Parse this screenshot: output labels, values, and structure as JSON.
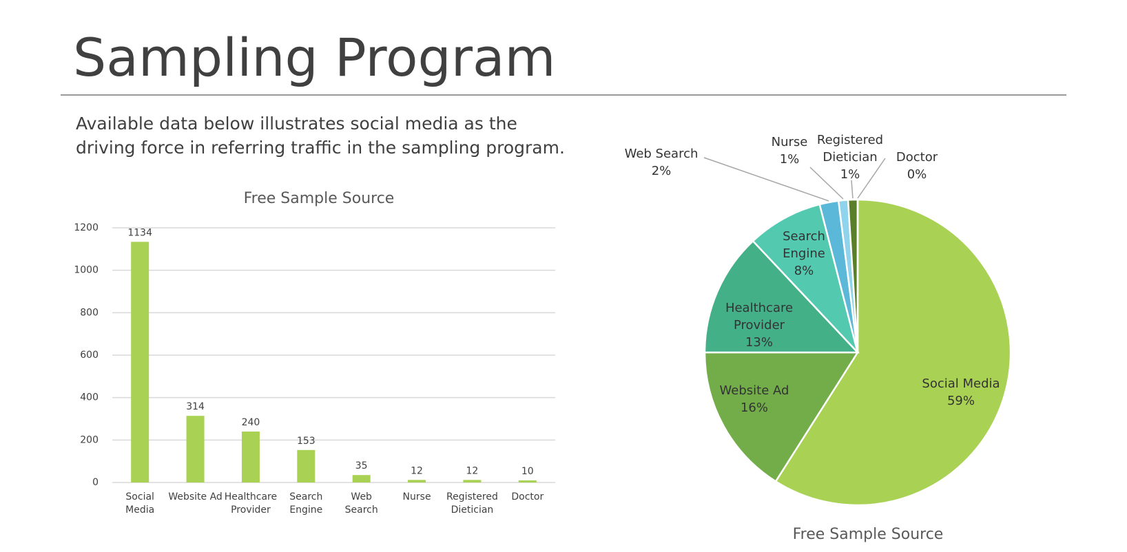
{
  "title": "Sampling Program",
  "subtitle": "Available data below illustrates social media as the driving force in referring traffic in the sampling program.",
  "chart_data": [
    {
      "type": "bar",
      "title": "Free Sample Source",
      "categories": [
        "Social Media",
        "Website Ad",
        "Healthcare Provider",
        "Search Engine",
        "Web Search",
        "Nurse",
        "Registered Dietician",
        "Doctor"
      ],
      "values": [
        1134,
        314,
        240,
        153,
        35,
        12,
        12,
        10
      ],
      "color": "#a9d153",
      "ylim": [
        0,
        1200
      ],
      "yticks": [
        0,
        200,
        400,
        600,
        800,
        1000,
        1200
      ],
      "grid": true
    },
    {
      "type": "pie",
      "title": "Free Sample Source",
      "categories": [
        "Social Media",
        "Website Ad",
        "Healthcare Provider",
        "Search Engine",
        "Web Search",
        "Nurse",
        "Registered Dietician",
        "Doctor"
      ],
      "values": [
        59,
        16,
        13,
        8,
        2,
        1,
        1,
        0
      ],
      "value_labels": [
        "59%",
        "16%",
        "13%",
        "8%",
        "2%",
        "1%",
        "1%",
        "0%"
      ],
      "colors": [
        "#a9d153",
        "#72ad4a",
        "#44b088",
        "#53c9b0",
        "#5bb8d8",
        "#8fd3ec",
        "#5a7f2b",
        "#3d6a2a"
      ]
    }
  ]
}
